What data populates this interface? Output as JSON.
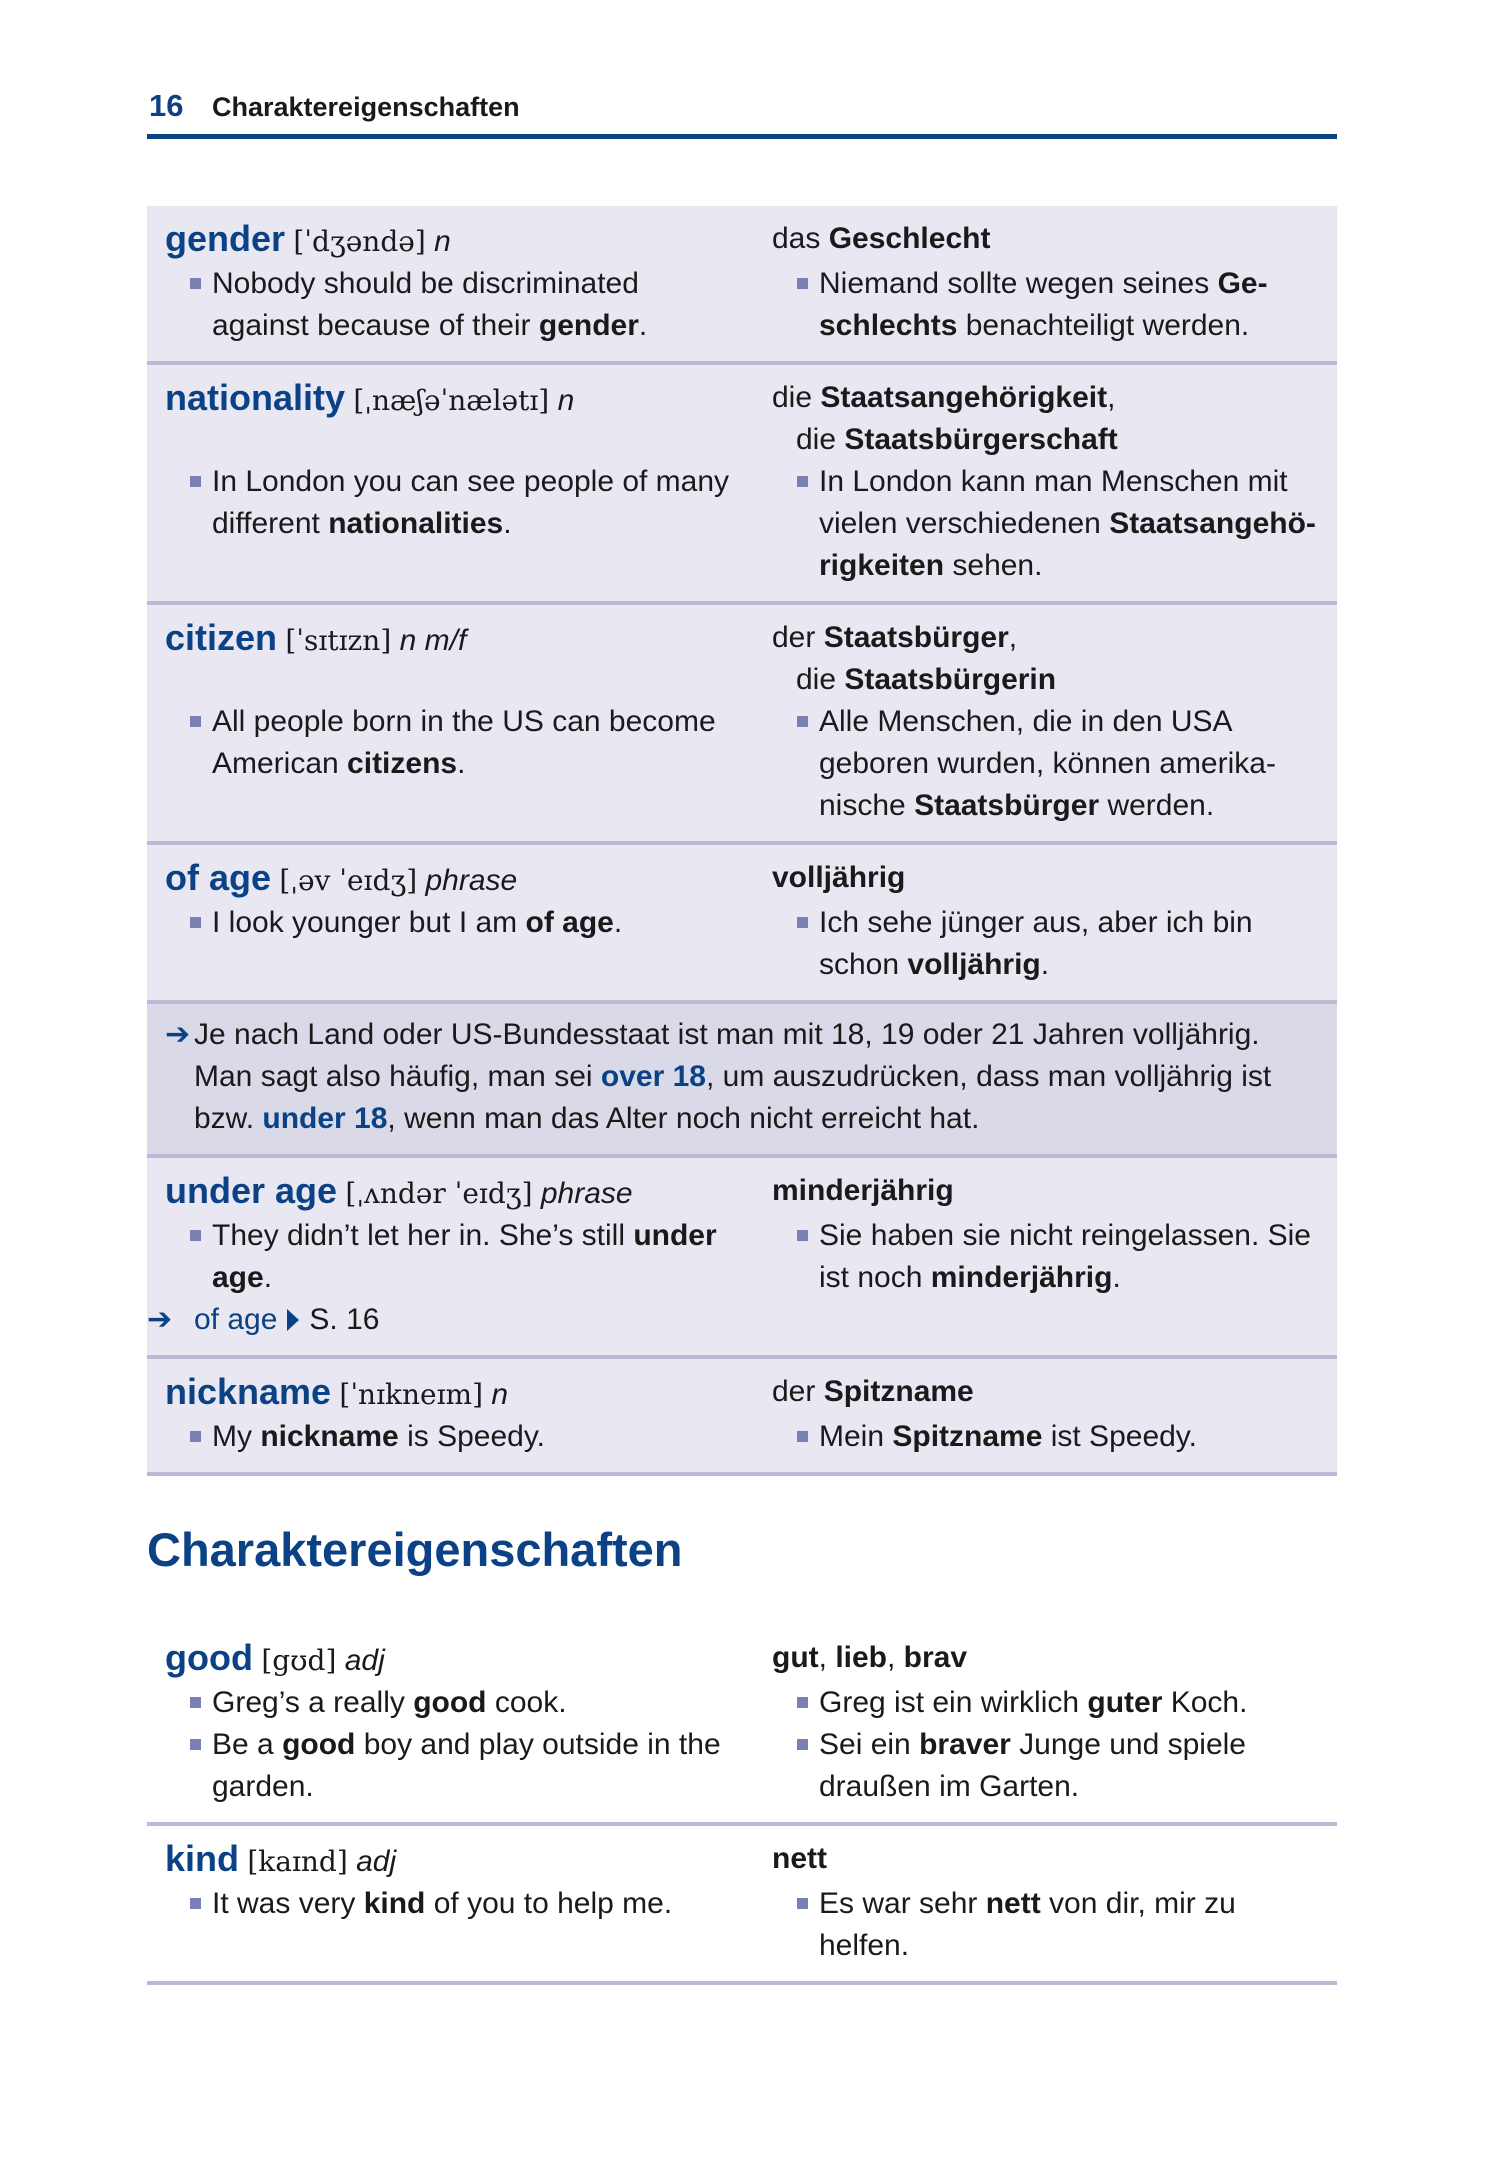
{
  "header": {
    "page_number": "16",
    "running_title": "Charaktereigenschaften"
  },
  "colors": {
    "accent": "#0b4185",
    "row_bg": "#e9e8f2",
    "note_bg": "#d9d9e8",
    "divider": "#b9bad6",
    "bullet": "#7b80b3"
  },
  "icons": {
    "note_arrow": "right-arrow-icon",
    "xref_arrow": "right-arrow-icon",
    "xref_pointer": "triangle-right-icon",
    "bullet": "square-bullet-icon"
  },
  "entries_top": [
    {
      "headword": "gender",
      "ipa": "[ˈdʒəndə]",
      "pos": "n",
      "translation": [
        [
          {
            "text": "das ",
            "s": ""
          },
          {
            "text": "Geschlecht",
            "s": "b"
          }
        ]
      ],
      "examples": [
        {
          "en": [
            {
              "text": "Nobody should be discriminated against because of their ",
              "s": ""
            },
            {
              "text": "gender",
              "s": "b"
            },
            {
              "text": ".",
              "s": ""
            }
          ],
          "de": [
            {
              "text": "Niemand sollte wegen seines ",
              "s": ""
            },
            {
              "text": "Ge­schlechts",
              "s": "b"
            },
            {
              "text": " benachteiligt werden.",
              "s": ""
            }
          ]
        }
      ]
    },
    {
      "headword": "nationality",
      "ipa": "[ˌnæʃəˈnælətɪ]",
      "pos": "n",
      "translation": [
        [
          {
            "text": "die ",
            "s": ""
          },
          {
            "text": "Staatsangehörigkeit",
            "s": "b"
          },
          {
            "text": ",",
            "s": ""
          }
        ],
        [
          {
            "text": "die ",
            "s": ""
          },
          {
            "text": "Staatsbürgerschaft",
            "s": "b"
          }
        ]
      ],
      "examples": [
        {
          "en": [
            {
              "text": "In London you can see people of many different ",
              "s": ""
            },
            {
              "text": "nationalities",
              "s": "b"
            },
            {
              "text": ".",
              "s": ""
            }
          ],
          "de": [
            {
              "text": "In London kann man Menschen mit vielen verschiedenen ",
              "s": ""
            },
            {
              "text": "Staatsangehö­rigkeiten",
              "s": "b"
            },
            {
              "text": " sehen.",
              "s": ""
            }
          ]
        }
      ]
    },
    {
      "headword": "citizen",
      "ipa": "[ˈsɪtɪzn]",
      "pos": "n m/f",
      "translation": [
        [
          {
            "text": "der ",
            "s": ""
          },
          {
            "text": "Staatsbürger",
            "s": "b"
          },
          {
            "text": ",",
            "s": ""
          }
        ],
        [
          {
            "text": "die ",
            "s": ""
          },
          {
            "text": "Staatsbürgerin",
            "s": "b"
          }
        ]
      ],
      "examples": [
        {
          "en": [
            {
              "text": "All people born in the US can become American ",
              "s": ""
            },
            {
              "text": "citizens",
              "s": "b"
            },
            {
              "text": ".",
              "s": ""
            }
          ],
          "de": [
            {
              "text": "Alle Menschen, die in den USA geboren wurden, können amerika­nische ",
              "s": ""
            },
            {
              "text": "Staatsbürger",
              "s": "b"
            },
            {
              "text": " werden.",
              "s": ""
            }
          ]
        }
      ]
    },
    {
      "headword": "of age",
      "ipa": "[ˌəv ˈeɪdʒ]",
      "pos": "phrase",
      "translation": [
        [
          {
            "text": "volljährig",
            "s": "b"
          }
        ]
      ],
      "examples": [
        {
          "en": [
            {
              "text": "I look younger but I am ",
              "s": ""
            },
            {
              "text": "of age",
              "s": "b"
            },
            {
              "text": ".",
              "s": ""
            }
          ],
          "de": [
            {
              "text": "Ich sehe jünger aus, aber ich bin schon ",
              "s": ""
            },
            {
              "text": "volljährig",
              "s": "b"
            },
            {
              "text": ".",
              "s": ""
            }
          ]
        }
      ]
    }
  ],
  "note": [
    {
      "text": "Je nach Land oder US-Bundesstaat ist man mit 18, 19 oder 21 Jahren volljährig. Man sagt also häufig, man sei ",
      "s": ""
    },
    {
      "text": "over 18",
      "s": "lb"
    },
    {
      "text": ", um auszudrücken, dass man volljährig ist bzw. ",
      "s": ""
    },
    {
      "text": "under 18",
      "s": "lb"
    },
    {
      "text": ", wenn man das Alter noch nicht erreicht hat.",
      "s": ""
    }
  ],
  "entries_mid": [
    {
      "headword": "under age",
      "ipa": "[ˌʌndər ˈeɪdʒ]",
      "pos": "phrase",
      "translation": [
        [
          {
            "text": "minderjährig",
            "s": "b"
          }
        ]
      ],
      "examples": [
        {
          "en": [
            {
              "text": "They didn’t let her in. She’s still ",
              "s": ""
            },
            {
              "text": "under age",
              "s": "b"
            },
            {
              "text": ".",
              "s": ""
            }
          ],
          "de": [
            {
              "text": "Sie haben sie nicht reingelassen. Sie ist noch ",
              "s": ""
            },
            {
              "text": "minderjährig",
              "s": "b"
            },
            {
              "text": ".",
              "s": ""
            }
          ]
        }
      ],
      "xref": {
        "target": "of age",
        "page": "S. 16"
      }
    },
    {
      "headword": "nickname",
      "ipa": "[ˈnɪkneɪm]",
      "pos": "n",
      "translation": [
        [
          {
            "text": "der ",
            "s": ""
          },
          {
            "text": "Spitzname",
            "s": "b"
          }
        ]
      ],
      "examples": [
        {
          "en": [
            {
              "text": "My ",
              "s": ""
            },
            {
              "text": "nickname",
              "s": "b"
            },
            {
              "text": " is Speedy.",
              "s": ""
            }
          ],
          "de": [
            {
              "text": "Mein ",
              "s": ""
            },
            {
              "text": "Spitzname",
              "s": "b"
            },
            {
              "text": " ist Speedy.",
              "s": ""
            }
          ]
        }
      ]
    }
  ],
  "section_title": "Charaktereigenschaften",
  "entries_section": [
    {
      "headword": "good",
      "ipa": "[gʊd]",
      "pos": "adj",
      "translation": [
        [
          {
            "text": "gut",
            "s": "b"
          },
          {
            "text": ", ",
            "s": ""
          },
          {
            "text": "lieb",
            "s": "b"
          },
          {
            "text": ", ",
            "s": ""
          },
          {
            "text": "brav",
            "s": "b"
          }
        ]
      ],
      "examples": [
        {
          "en": [
            {
              "text": "Greg’s a really ",
              "s": ""
            },
            {
              "text": "good",
              "s": "b"
            },
            {
              "text": " cook.",
              "s": ""
            }
          ],
          "de": [
            {
              "text": "Greg ist ein wirklich ",
              "s": ""
            },
            {
              "text": "guter",
              "s": "b"
            },
            {
              "text": " Koch.",
              "s": ""
            }
          ]
        },
        {
          "en": [
            {
              "text": "Be a ",
              "s": ""
            },
            {
              "text": "good",
              "s": "b"
            },
            {
              "text": " boy and play outside in the garden.",
              "s": ""
            }
          ],
          "de": [
            {
              "text": "Sei ein ",
              "s": ""
            },
            {
              "text": "braver",
              "s": "b"
            },
            {
              "text": " Junge und spiele draußen im Garten.",
              "s": ""
            }
          ]
        }
      ]
    },
    {
      "headword": "kind",
      "ipa": "[kaɪnd]",
      "pos": "adj",
      "translation": [
        [
          {
            "text": "nett",
            "s": "b"
          }
        ]
      ],
      "examples": [
        {
          "en": [
            {
              "text": "It was very ",
              "s": ""
            },
            {
              "text": "kind",
              "s": "b"
            },
            {
              "text": " of you to help me.",
              "s": ""
            }
          ],
          "de": [
            {
              "text": "Es war sehr ",
              "s": ""
            },
            {
              "text": "nett",
              "s": "b"
            },
            {
              "text": " von dir, mir zu helfen.",
              "s": ""
            }
          ]
        }
      ]
    }
  ]
}
